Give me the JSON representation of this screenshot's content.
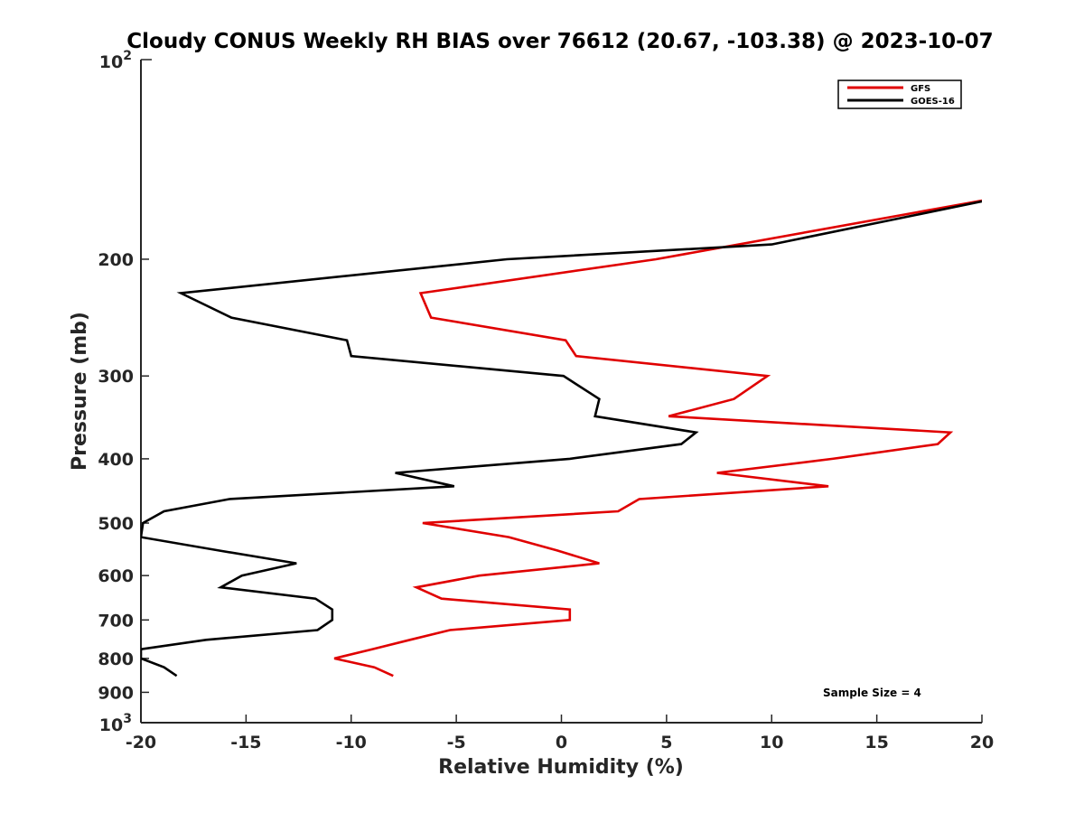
{
  "chart_data": {
    "type": "line",
    "title": "Cloudy CONUS Weekly RH BIAS over 76612 (20.67, -103.38) @ 2023-10-07",
    "xlabel": "Relative Humidity (%)",
    "ylabel": "Pressure (mb)",
    "xlim": [
      -20,
      20
    ],
    "ylim": [
      1000,
      100
    ],
    "yscale": "log",
    "xticks": [
      -20,
      -15,
      -10,
      -5,
      0,
      5,
      10,
      15,
      20
    ],
    "xtick_labels": [
      "-20",
      "-15",
      "-10",
      "-5",
      "0",
      "5",
      "10",
      "15",
      "20"
    ],
    "yticks": [
      200,
      300,
      400,
      500,
      600,
      700,
      800,
      900
    ],
    "ytick_labels": [
      "200",
      "300",
      "400",
      "500",
      "600",
      "700",
      "800",
      "900"
    ],
    "ytick_major": [
      {
        "value": 100,
        "base": "10",
        "exp": "2"
      },
      {
        "value": 1000,
        "base": "10",
        "exp": "3"
      }
    ],
    "legend_position": "top-right",
    "annotation": "Sample Size = 4",
    "series": [
      {
        "name": "GFS",
        "color": "#e00000",
        "pressure": [
          160,
          200,
          225,
          245,
          265,
          280,
          300,
          325,
          345,
          365,
          380,
          400,
          420,
          440,
          460,
          480,
          500,
          525,
          550,
          575,
          600,
          625,
          650,
          675,
          700,
          725,
          750,
          775,
          800,
          825,
          850
        ],
        "values": [
          21.5,
          4.5,
          -6.7,
          -6.2,
          0.2,
          0.7,
          9.8,
          8.2,
          5.1,
          18.5,
          17.9,
          12.9,
          7.4,
          12.7,
          3.7,
          2.7,
          -6.6,
          -2.5,
          -0.2,
          1.8,
          -3.9,
          -6.9,
          -5.7,
          0.4,
          0.4,
          -5.3,
          -7.2,
          -9.0,
          -10.8,
          -8.9,
          -8.0
        ]
      },
      {
        "name": "GOES-16",
        "color": "#000000",
        "pressure": [
          160,
          190,
          200,
          225,
          245,
          265,
          280,
          300,
          325,
          345,
          365,
          380,
          400,
          420,
          440,
          460,
          480,
          500,
          525,
          550,
          575,
          600,
          625,
          650,
          675,
          700,
          725,
          750,
          775,
          800,
          825,
          850
        ],
        "values": [
          21.5,
          10.0,
          -2.6,
          -18.1,
          -15.7,
          -10.2,
          -10.0,
          0.1,
          1.8,
          1.6,
          6.4,
          5.7,
          0.4,
          -7.9,
          -5.1,
          -15.8,
          -18.9,
          -19.9,
          -20.0,
          -16.3,
          -12.6,
          -15.2,
          -16.2,
          -11.7,
          -10.9,
          -10.9,
          -11.6,
          -16.9,
          -20.0,
          -20.0,
          -18.9,
          -18.3
        ]
      }
    ]
  }
}
